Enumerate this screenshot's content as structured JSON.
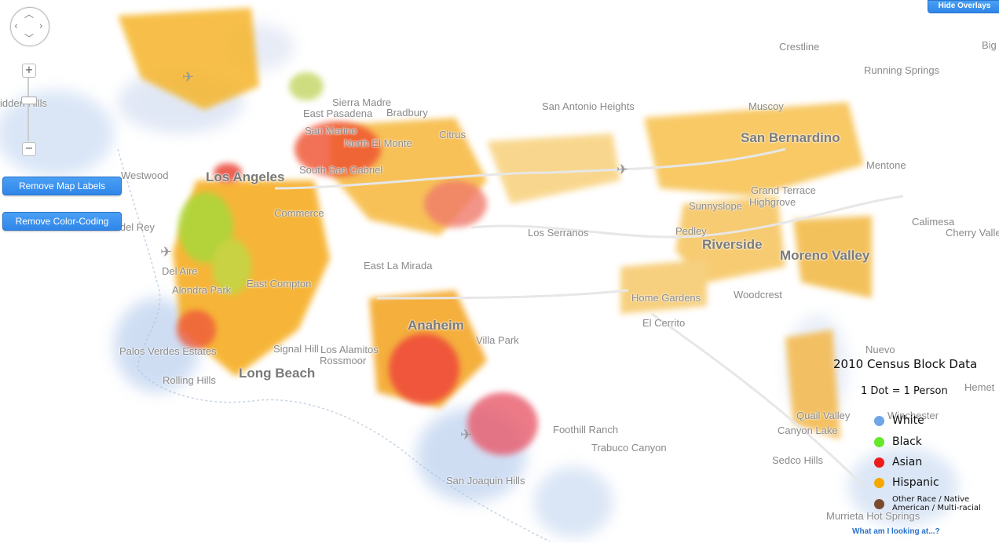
{
  "controls": {
    "hide_overlays": "Hide Overlays",
    "remove_labels": "Remove Map Labels",
    "remove_color": "Remove Color-Coding",
    "zoom_in": "+",
    "zoom_out": "−",
    "pan_glyphs": [
      "︿",
      "﹀",
      "‹",
      "›"
    ]
  },
  "map_labels": {
    "bighills": "idden Hills",
    "westwood": "Westwood",
    "los_angeles": "Los Angeles",
    "commerce": "Commerce",
    "sierra_madre": "Sierra Madre",
    "east_pasadena": "East Pasadena",
    "bradbury": "Bradbury",
    "san_marino": "San Marino",
    "north_el_monte": "North El Monte",
    "citrus": "Citrus",
    "south_san_gabriel": "South San Gabriel",
    "san_antonio_heights": "San Antonio Heights",
    "muscoy": "Muscoy",
    "crestline": "Crestline",
    "running_springs": "Running Springs",
    "big": "Big",
    "san_bernardino": "San Bernardino",
    "mentone": "Mentone",
    "grand_terrace": "Grand Terrace",
    "highgrove": "Highgrove",
    "sunnyslope": "Sunnyslope",
    "calimesa": "Calimesa",
    "cherry_valley": "Cherry Valle",
    "los_serranos": "Los Serranos",
    "pedley": "Pedley",
    "riverside": "Riverside",
    "moreno_valley": "Moreno Valley",
    "del_rey": "a del Rey",
    "del_aire": "Del Aire",
    "east_la_mirada": "East La Mirada",
    "east_compton": "East Compton",
    "alondra_park": "Alondra Park",
    "home_gardens": "Home Gardens",
    "woodcrest": "Woodcrest",
    "el_cerrito": "El Cerrito",
    "anaheim": "Anaheim",
    "villa_park": "Villa Park",
    "palos_verdes": "Palos Verdes Estates",
    "signal_hill": "Signal Hill",
    "los_alamitos": "Los Alamitos",
    "rossmoor": "Rossmoor",
    "long_beach": "Long Beach",
    "rolling_hills": "Rolling Hills",
    "nuevo": "Nuevo",
    "hemet": "Hemet",
    "quail_valley": "Quail Valley",
    "winchester": "Winchester",
    "canyon_lake": "Canyon Lake",
    "foothill_ranch": "Foothill Ranch",
    "trabuco_canyon": "Trabuco Canyon",
    "sedco_hills": "Sedco Hills",
    "san_joaquin_hills": "San Joaquin Hills",
    "murrieta_hot_springs": "Murrieta Hot Springs"
  },
  "legend": {
    "title": "2010 Census Block Data",
    "subtitle": "1 Dot = 1 Person",
    "items": [
      {
        "label": "White",
        "color": "#6ea6e8"
      },
      {
        "label": "Black",
        "color": "#66e82a"
      },
      {
        "label": "Asian",
        "color": "#ee1b1b"
      },
      {
        "label": "Hispanic",
        "color": "#f5a800"
      },
      {
        "label": "Other Race / Native",
        "label2": "American / Multi-racial",
        "color": "#7b4a2e"
      }
    ],
    "link": "What am I looking at...?"
  }
}
